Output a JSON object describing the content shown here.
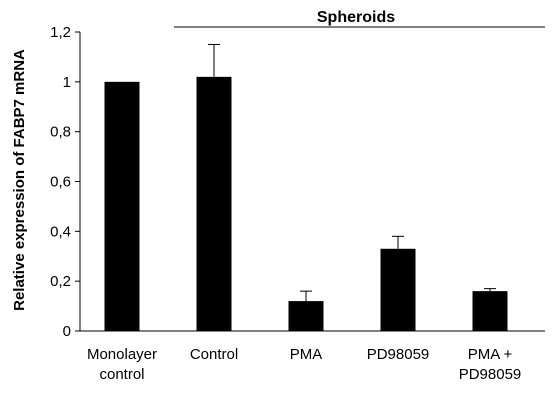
{
  "chart_data": {
    "type": "bar",
    "categories": [
      [
        "Monolayer",
        "control"
      ],
      [
        "Control"
      ],
      [
        "PMA"
      ],
      [
        "PD98059"
      ],
      [
        "PMA +",
        "PD98059"
      ]
    ],
    "values": [
      1.0,
      1.02,
      0.12,
      0.33,
      0.16
    ],
    "errors": [
      0,
      0.13,
      0.04,
      0.05,
      0.01
    ],
    "ylabel": "Relative expression of FABP7 mRNA",
    "ylim": [
      0,
      1.2
    ],
    "yticks": [
      "0",
      "0,2",
      "0,4",
      "0,6",
      "0,8",
      "1",
      "1,2"
    ],
    "group_annotation": {
      "label": "Spheroids",
      "from_category": 1,
      "to_category": 4
    },
    "bar_color": "#000000",
    "grid": false
  }
}
